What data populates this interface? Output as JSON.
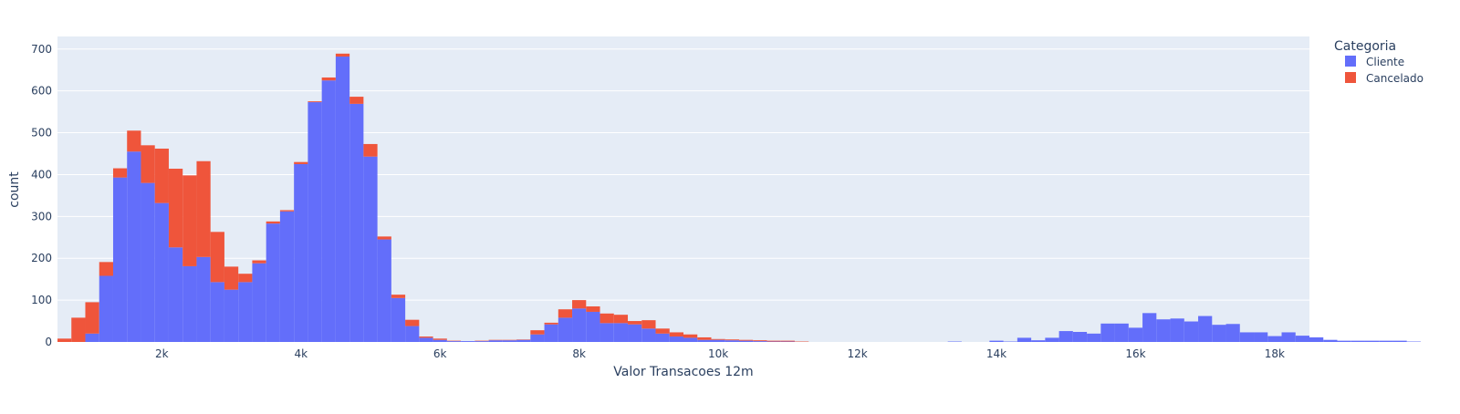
{
  "chart_data": {
    "type": "bar",
    "stacked": true,
    "xlabel": "Valor Transacoes 12m",
    "ylabel": "count",
    "xlim": [
      500,
      18500
    ],
    "ylim": [
      0,
      730
    ],
    "bin_start": 500,
    "bin_width": 200,
    "x_ticks": [
      2000,
      4000,
      6000,
      8000,
      10000,
      12000,
      14000,
      16000,
      18000
    ],
    "x_tick_labels": [
      "2k",
      "4k",
      "6k",
      "8k",
      "10k",
      "12k",
      "14k",
      "16k",
      "18k"
    ],
    "y_ticks": [
      0,
      100,
      200,
      300,
      400,
      500,
      600,
      700
    ],
    "y_tick_labels": [
      "0",
      "100",
      "200",
      "300",
      "400",
      "500",
      "600",
      "700"
    ],
    "grid": true,
    "legend": {
      "title": "Categoria",
      "placement": "top-right"
    },
    "series": [
      {
        "name": "Cliente",
        "color": "#636efa",
        "values": [
          0,
          0,
          20,
          158,
          393,
          455,
          380,
          332,
          226,
          181,
          203,
          143,
          125,
          143,
          188,
          283,
          312,
          425,
          573,
          625,
          682,
          569,
          443,
          245,
          105,
          38,
          10,
          5,
          2,
          2,
          2,
          4,
          4,
          5,
          18,
          42,
          58,
          80,
          72,
          45,
          45,
          42,
          32,
          20,
          13,
          10,
          5,
          5,
          4,
          3,
          2,
          1,
          1,
          0,
          0,
          0,
          0,
          0,
          0,
          0,
          0,
          0,
          0,
          0,
          1,
          0,
          0,
          3,
          1,
          10,
          4,
          10,
          26,
          24,
          20,
          44,
          44,
          34,
          69,
          54,
          56,
          49,
          62,
          41,
          43,
          23,
          23,
          14,
          23,
          15,
          11,
          5,
          3,
          3,
          3,
          3,
          3,
          1,
          0,
          0
        ]
      },
      {
        "name": "Cancelado",
        "color": "#ef553b",
        "values": [
          8,
          58,
          75,
          33,
          22,
          50,
          90,
          130,
          188,
          217,
          229,
          120,
          55,
          20,
          7,
          5,
          3,
          5,
          2,
          7,
          7,
          17,
          30,
          7,
          8,
          15,
          3,
          3,
          1,
          0,
          1,
          1,
          1,
          1,
          10,
          4,
          20,
          20,
          13,
          23,
          20,
          8,
          20,
          12,
          10,
          8,
          6,
          2,
          2,
          2,
          2,
          2,
          2,
          1,
          0,
          0,
          0,
          0,
          0,
          0,
          0,
          0,
          0,
          0,
          0,
          0,
          0,
          0,
          0,
          0,
          0,
          0,
          0,
          0,
          0,
          0,
          0,
          0,
          0,
          0,
          0,
          0,
          0,
          0,
          0,
          0,
          0,
          0,
          0,
          0,
          0,
          0,
          0,
          0,
          0,
          0,
          0,
          0,
          0,
          0
        ]
      }
    ]
  }
}
